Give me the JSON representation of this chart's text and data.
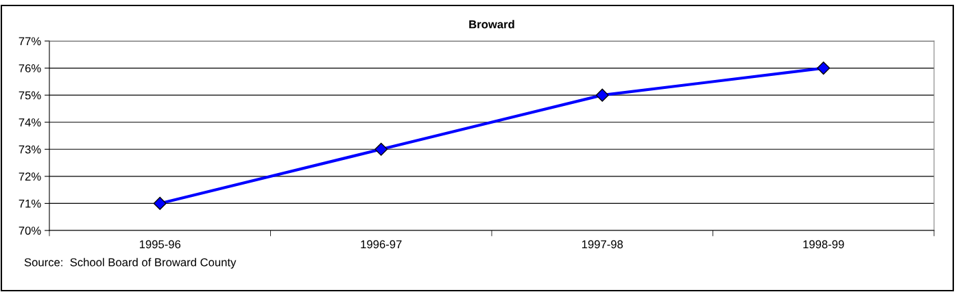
{
  "chart_data": {
    "type": "line",
    "title": "Broward",
    "categories": [
      "1995-96",
      "1996-97",
      "1997-98",
      "1998-99"
    ],
    "series": [
      {
        "color": "#0000ff",
        "values": [
          71,
          73,
          75,
          76
        ]
      }
    ],
    "ylim": [
      70,
      77
    ],
    "yticks": [
      {
        "value": 70,
        "label": "70%"
      },
      {
        "value": 71,
        "label": "71%"
      },
      {
        "value": 72,
        "label": "72%"
      },
      {
        "value": 73,
        "label": "73%"
      },
      {
        "value": 74,
        "label": "74%"
      },
      {
        "value": 75,
        "label": "75%"
      },
      {
        "value": 76,
        "label": "76%"
      },
      {
        "value": 77,
        "label": "77%"
      }
    ],
    "grid": "y",
    "marker": "diamond",
    "line_style": "solid",
    "annotations": [
      "Source:  School Board of Broward County"
    ]
  }
}
